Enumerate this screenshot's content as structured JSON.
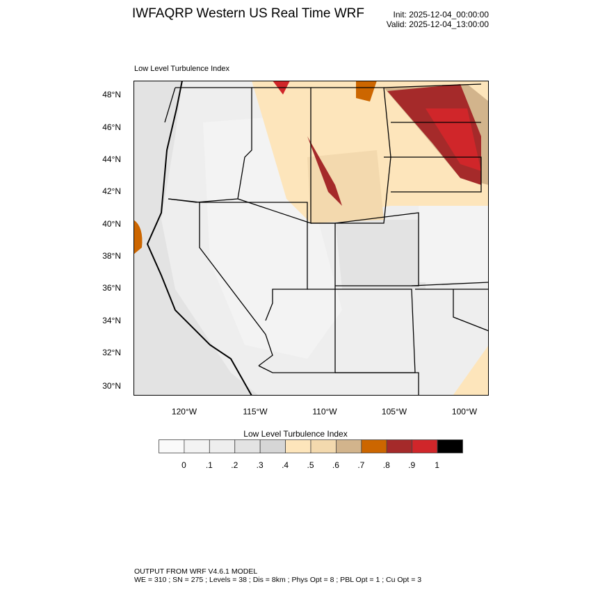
{
  "header": {
    "title": "IWFAQRP Western US Real Time WRF",
    "init": "Init: 2025-12-04_00:00:00",
    "valid": "Valid: 2025-12-04_13:00:00"
  },
  "map": {
    "subtitle": "Low Level Turbulence Index",
    "lat_labels": [
      "48°N",
      "46°N",
      "44°N",
      "42°N",
      "40°N",
      "38°N",
      "36°N",
      "34°N",
      "32°N",
      "30°N"
    ],
    "lon_labels": [
      "120°W",
      "115°W",
      "110°W",
      "105°W",
      "100°W"
    ]
  },
  "colorbar": {
    "title": "Low Level Turbulence Index",
    "colors": [
      "#fafafa",
      "#f3f3f3",
      "#eeeeee",
      "#e3e3e3",
      "#d6d6d6",
      "#fde5bb",
      "#f3d9ae",
      "#d2b48c",
      "#cc6600",
      "#a52a2a",
      "#d0262a",
      "#000000"
    ],
    "labels": [
      "0",
      ".1",
      ".2",
      ".3",
      ".4",
      ".5",
      ".6",
      ".7",
      ".8",
      ".9",
      "1"
    ]
  },
  "footer": {
    "line1": "OUTPUT FROM WRF V4.6.1 MODEL",
    "line2": "WE = 310 ; SN = 275 ; Levels = 38 ; Dis = 8km ; Phys Opt = 8 ; PBL Opt = 1 ; Cu Opt = 3"
  }
}
